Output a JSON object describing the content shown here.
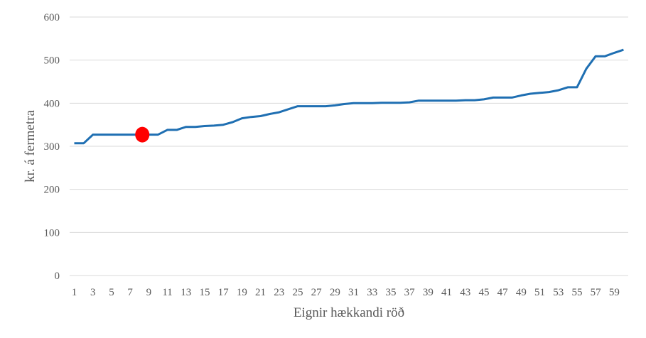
{
  "chart_data": {
    "type": "line",
    "title": "",
    "xlabel": "Eignir hækkandi röð",
    "ylabel": "kr. á fermetra",
    "ylim": [
      0,
      600
    ],
    "yticks": [
      0,
      100,
      200,
      300,
      400,
      500,
      600
    ],
    "xlim": [
      1,
      60
    ],
    "xticks": [
      1,
      3,
      5,
      7,
      9,
      11,
      13,
      15,
      17,
      19,
      21,
      23,
      25,
      27,
      29,
      31,
      33,
      35,
      37,
      39,
      41,
      43,
      45,
      47,
      49,
      51,
      53,
      55,
      57,
      59
    ],
    "grid": true,
    "legend": "none",
    "series": [
      {
        "color": "#1f6fb2",
        "x": [
          1,
          2,
          3,
          4,
          5,
          6,
          7,
          8,
          9,
          10,
          11,
          12,
          13,
          14,
          15,
          16,
          17,
          18,
          19,
          20,
          21,
          22,
          23,
          24,
          25,
          26,
          27,
          28,
          29,
          30,
          31,
          32,
          33,
          34,
          35,
          36,
          37,
          38,
          39,
          40,
          41,
          42,
          43,
          44,
          45,
          46,
          47,
          48,
          49,
          50,
          51,
          52,
          53,
          54,
          55,
          56,
          57,
          58,
          59,
          60
        ],
        "values": [
          307,
          307,
          327,
          327,
          327,
          327,
          327,
          327,
          327,
          327,
          338,
          338,
          345,
          345,
          347,
          348,
          350,
          356,
          365,
          368,
          370,
          375,
          379,
          386,
          393,
          393,
          393,
          393,
          395,
          398,
          400,
          400,
          400,
          401,
          401,
          401,
          402,
          406,
          406,
          406,
          406,
          406,
          407,
          407,
          409,
          413,
          413,
          413,
          418,
          422,
          424,
          426,
          430,
          437,
          437,
          480,
          509,
          509,
          517,
          524
        ]
      }
    ],
    "highlight": {
      "x": 8,
      "y": 327,
      "color": "#ff0000"
    }
  }
}
